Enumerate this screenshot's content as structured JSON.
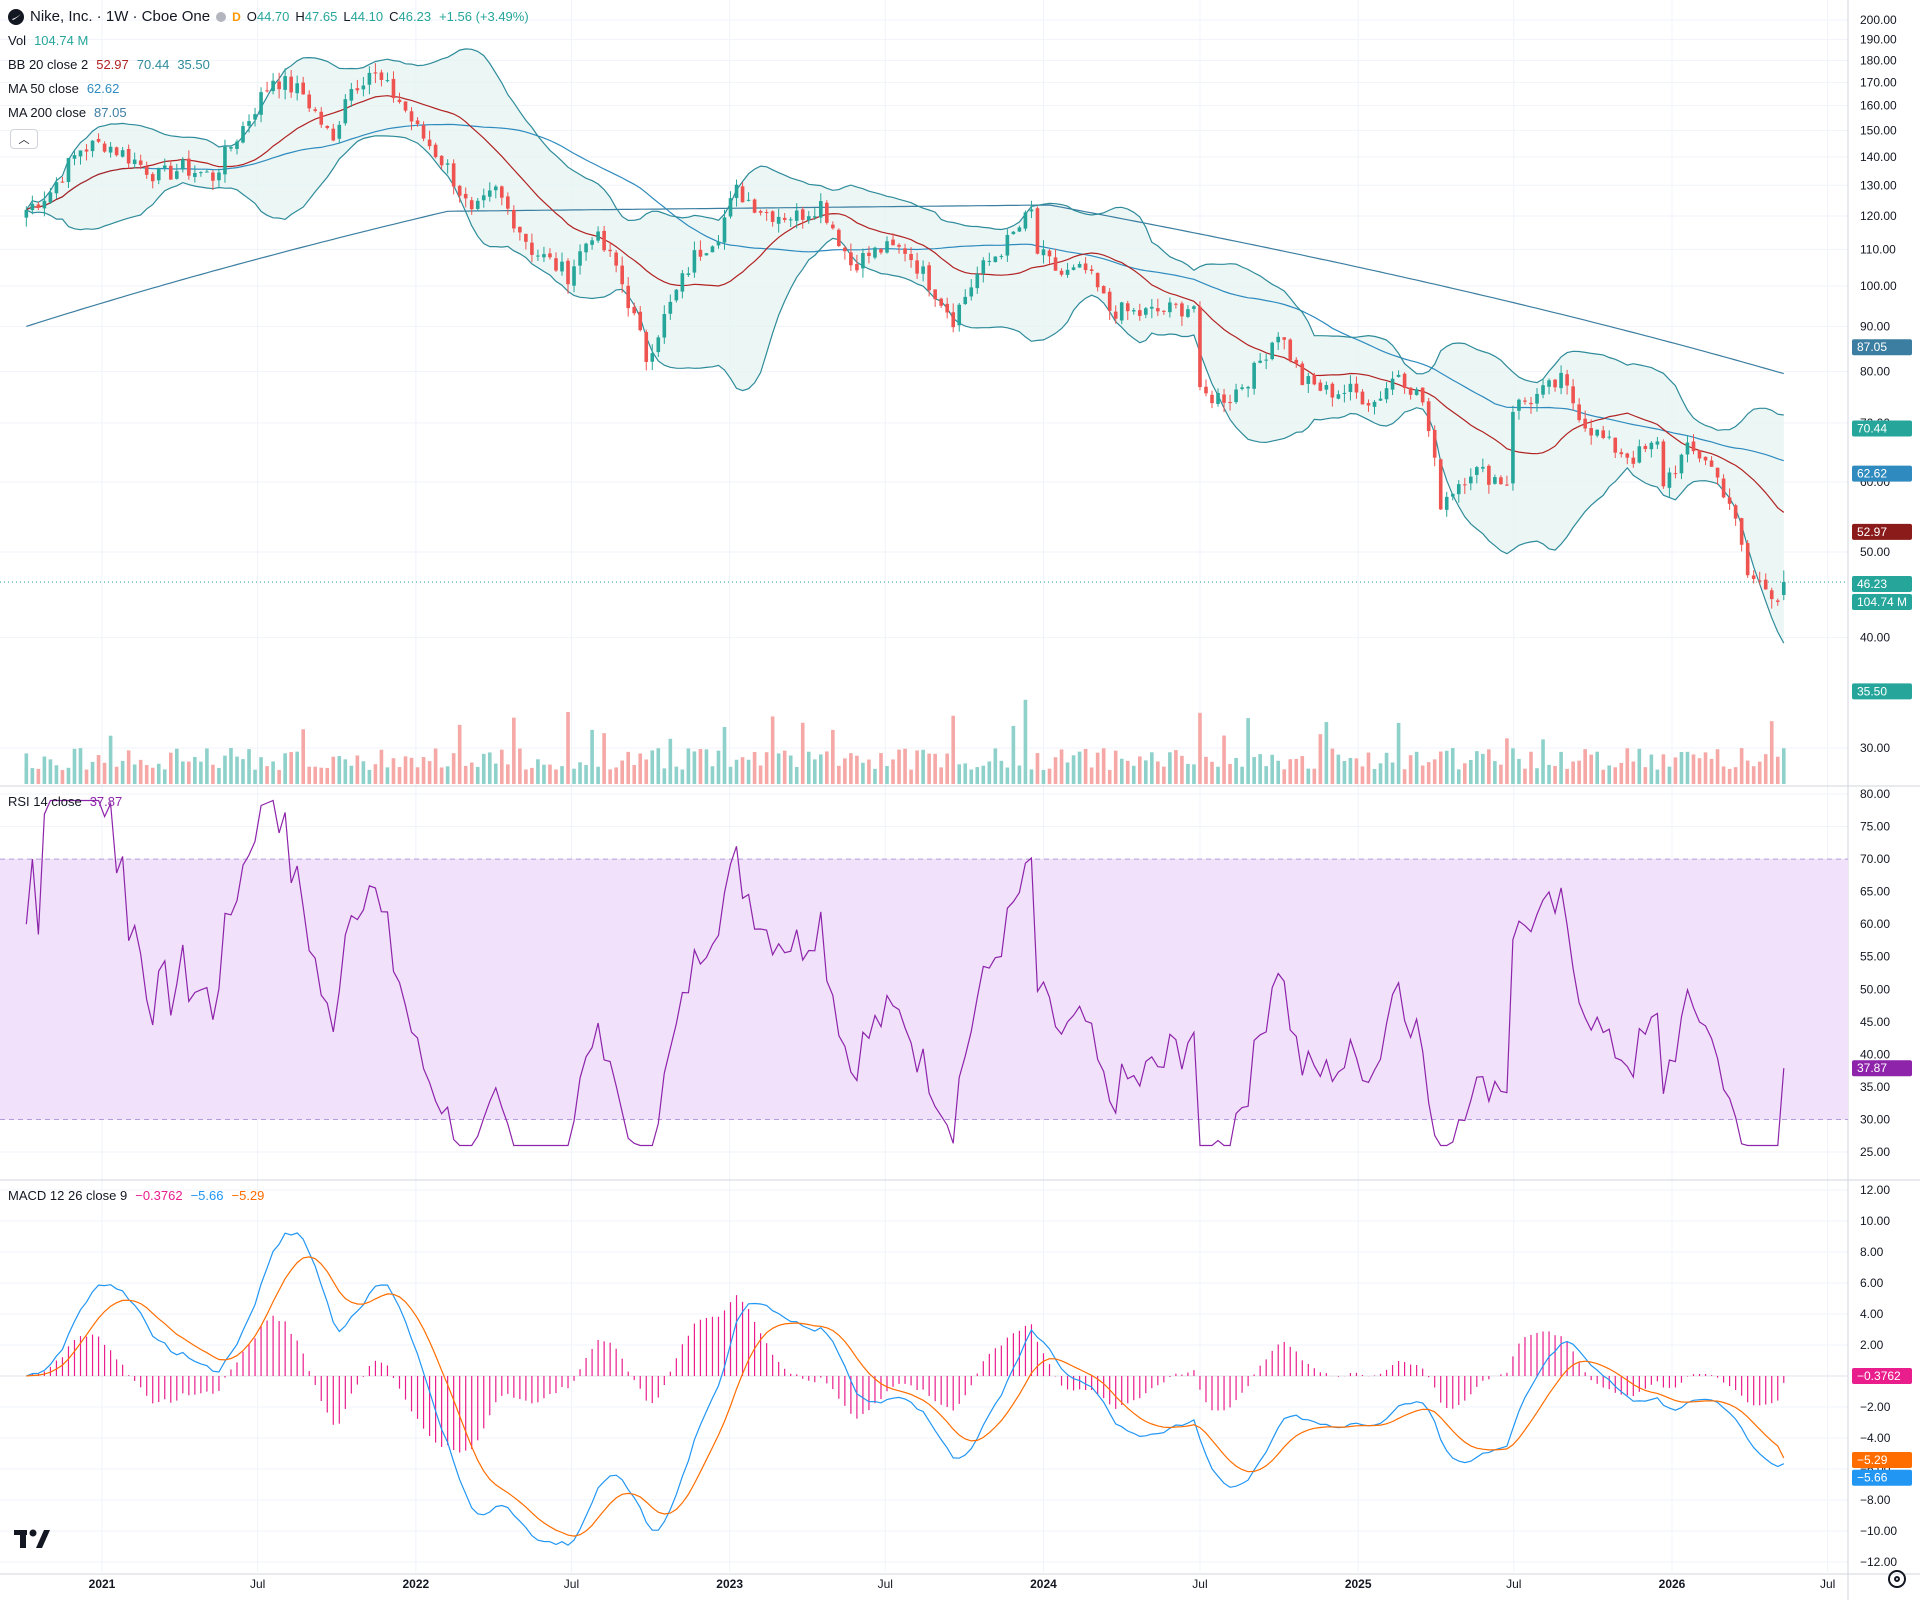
{
  "header": {
    "symbol_title": "Nike, Inc. · 1W · Cboe One",
    "o_label": "O",
    "o_value": "44.70",
    "h_label": "H",
    "h_value": "47.65",
    "l_label": "L",
    "l_value": "44.10",
    "c_label": "C",
    "c_value": "46.23",
    "change": "+1.56 (+3.49%)",
    "badge": "D"
  },
  "indicators": {
    "vol": {
      "label": "Vol",
      "value": "104.74 M"
    },
    "bb": {
      "label": "BB 20 close 2",
      "basis": "52.97",
      "upper": "70.44",
      "lower": "35.50"
    },
    "ma50": {
      "label": "MA 50 close",
      "value": "62.62"
    },
    "ma200": {
      "label": "MA 200 close",
      "value": "87.05"
    },
    "rsi": {
      "label": "RSI 14 close",
      "value": "37.87"
    },
    "macd": {
      "label": "MACD 12 26 close 9",
      "hist": "−0.3762",
      "macd": "−5.66",
      "signal": "−5.29"
    }
  },
  "colors": {
    "up": "#26a69a",
    "down": "#ef5350",
    "bb_line": "#2e8b9a",
    "bb_fill": "#e6f4f3",
    "basis": "#b22222",
    "ma50": "#2f8bbf",
    "ma200": "#3b7ea1",
    "rsi": "#8e24aa",
    "rsi_band": "#f1e1fb",
    "macd_line": "#2196f3",
    "signal_line": "#ff6d00",
    "hist": "#e91e8c"
  },
  "axis": {
    "price_ticks": [
      "200.00",
      "190.00",
      "180.00",
      "170.00",
      "160.00",
      "150.00",
      "140.00",
      "130.00",
      "120.00",
      "110.00",
      "100.00",
      "90.00",
      "80.00",
      "70.00",
      "60.00",
      "50.00",
      "40.00",
      "30.00"
    ],
    "rsi_ticks": [
      "80.00",
      "75.00",
      "70.00",
      "65.00",
      "60.00",
      "55.00",
      "50.00",
      "45.00",
      "40.00",
      "35.00",
      "30.00",
      "25.00"
    ],
    "macd_ticks": [
      "12.00",
      "10.00",
      "8.00",
      "6.00",
      "4.00",
      "2.00",
      "0.00",
      "−2.00",
      "−4.00",
      "−6.00",
      "−8.00",
      "−10.00",
      "−12.00"
    ],
    "time_labels": [
      "2021",
      "Jul",
      "2022",
      "Jul",
      "2023",
      "Jul",
      "2024",
      "Jul",
      "2025",
      "Jul",
      "2026",
      "Jul"
    ]
  },
  "price_badges": {
    "ma200": "87.05",
    "bb_upper": "70.44",
    "ma50": "62.62",
    "bb_basis": "52.97",
    "last": "46.23",
    "volume": "104.74 M",
    "bb_lower": "35.50",
    "rsi": "37.87",
    "macd_hist": "−0.3762",
    "macd_signal": "−5.29",
    "macd_line": "−5.66"
  },
  "chart_data": {
    "type": "candlestick",
    "title": "Nike, Inc. · 1W · Cboe One",
    "price_range": [
      25,
      200
    ],
    "x_range": [
      "2020-10",
      "2026-08"
    ],
    "closes_weekly_keypoints": [
      {
        "date": "2020-10-05",
        "close": 122
      },
      {
        "date": "2020-11-02",
        "close": 128
      },
      {
        "date": "2020-12-07",
        "close": 143
      },
      {
        "date": "2021-01-04",
        "close": 145
      },
      {
        "date": "2021-02-01",
        "close": 140
      },
      {
        "date": "2021-03-08",
        "close": 133
      },
      {
        "date": "2021-04-05",
        "close": 136
      },
      {
        "date": "2021-05-10",
        "close": 133
      },
      {
        "date": "2021-06-21",
        "close": 155
      },
      {
        "date": "2021-07-19",
        "close": 172
      },
      {
        "date": "2021-08-23",
        "close": 165
      },
      {
        "date": "2021-09-27",
        "close": 145
      },
      {
        "date": "2021-10-11",
        "close": 165
      },
      {
        "date": "2021-11-08",
        "close": 175
      },
      {
        "date": "2021-12-13",
        "close": 162
      },
      {
        "date": "2022-01-03",
        "close": 150
      },
      {
        "date": "2022-02-07",
        "close": 136
      },
      {
        "date": "2022-03-07",
        "close": 120
      },
      {
        "date": "2022-04-04",
        "close": 128
      },
      {
        "date": "2022-05-16",
        "close": 110
      },
      {
        "date": "2022-06-27",
        "close": 103
      },
      {
        "date": "2022-07-25",
        "close": 115
      },
      {
        "date": "2022-08-22",
        "close": 105
      },
      {
        "date": "2022-09-26",
        "close": 83
      },
      {
        "date": "2022-10-24",
        "close": 95
      },
      {
        "date": "2022-11-21",
        "close": 108
      },
      {
        "date": "2022-12-19",
        "close": 115
      },
      {
        "date": "2023-01-09",
        "close": 128
      },
      {
        "date": "2023-02-13",
        "close": 121
      },
      {
        "date": "2023-03-20",
        "close": 120
      },
      {
        "date": "2023-04-17",
        "close": 124
      },
      {
        "date": "2023-05-22",
        "close": 106
      },
      {
        "date": "2023-06-26",
        "close": 110
      },
      {
        "date": "2023-07-24",
        "close": 110
      },
      {
        "date": "2023-08-21",
        "close": 101
      },
      {
        "date": "2023-09-18",
        "close": 92
      },
      {
        "date": "2023-10-16",
        "close": 103
      },
      {
        "date": "2023-11-20",
        "close": 112
      },
      {
        "date": "2023-12-18",
        "close": 121
      },
      {
        "date": "2023-12-25",
        "close": 109
      },
      {
        "date": "2024-01-22",
        "close": 103
      },
      {
        "date": "2024-02-19",
        "close": 104
      },
      {
        "date": "2024-03-18",
        "close": 94
      },
      {
        "date": "2024-04-22",
        "close": 93
      },
      {
        "date": "2024-05-27",
        "close": 94
      },
      {
        "date": "2024-06-24",
        "close": 95
      },
      {
        "date": "2024-07-01",
        "close": 75
      },
      {
        "date": "2024-08-05",
        "close": 75
      },
      {
        "date": "2024-09-02",
        "close": 80
      },
      {
        "date": "2024-09-30",
        "close": 89
      },
      {
        "date": "2024-10-28",
        "close": 78
      },
      {
        "date": "2024-11-25",
        "close": 76
      },
      {
        "date": "2024-12-23",
        "close": 76
      },
      {
        "date": "2025-01-20",
        "close": 74
      },
      {
        "date": "2025-02-17",
        "close": 80
      },
      {
        "date": "2025-03-17",
        "close": 74
      },
      {
        "date": "2025-04-07",
        "close": 57
      },
      {
        "date": "2025-05-12",
        "close": 62
      },
      {
        "date": "2025-06-23",
        "close": 60
      },
      {
        "date": "2025-06-30",
        "close": 73
      },
      {
        "date": "2025-07-28",
        "close": 75
      },
      {
        "date": "2025-08-25",
        "close": 78
      },
      {
        "date": "2025-09-22",
        "close": 70
      },
      {
        "date": "2025-10-20",
        "close": 66
      },
      {
        "date": "2025-11-17",
        "close": 64
      },
      {
        "date": "2025-12-15",
        "close": 66
      },
      {
        "date": "2025-12-22",
        "close": 60
      },
      {
        "date": "2026-01-19",
        "close": 65
      },
      {
        "date": "2026-02-09",
        "close": 64
      },
      {
        "date": "2026-03-09",
        "close": 57
      },
      {
        "date": "2026-03-30",
        "close": 47
      },
      {
        "date": "2026-05-04",
        "close": 44.7
      },
      {
        "date": "2026-05-11",
        "close": 46.23
      }
    ],
    "last_bar": {
      "open": 44.7,
      "high": 47.65,
      "low": 44.1,
      "close": 46.23,
      "change": 1.56,
      "change_pct": 3.49,
      "volume": "104.74 M"
    },
    "series": [
      {
        "name": "BB 20 close 2 basis",
        "last": 52.97
      },
      {
        "name": "BB upper",
        "last": 70.44
      },
      {
        "name": "BB lower",
        "last": 35.5
      },
      {
        "name": "MA 50 close",
        "last": 62.62
      },
      {
        "name": "MA 200 close",
        "last": 87.05
      },
      {
        "name": "RSI 14 close",
        "last": 37.87,
        "range": [
          25,
          80
        ],
        "bands": [
          30,
          70
        ]
      },
      {
        "name": "MACD 12 26 close 9",
        "histogram_last": -0.3762,
        "macd_last": -5.66,
        "signal_last": -5.29,
        "range": [
          -12,
          12
        ]
      }
    ],
    "volume_markers": [
      "104.74 M"
    ],
    "grid": true
  }
}
